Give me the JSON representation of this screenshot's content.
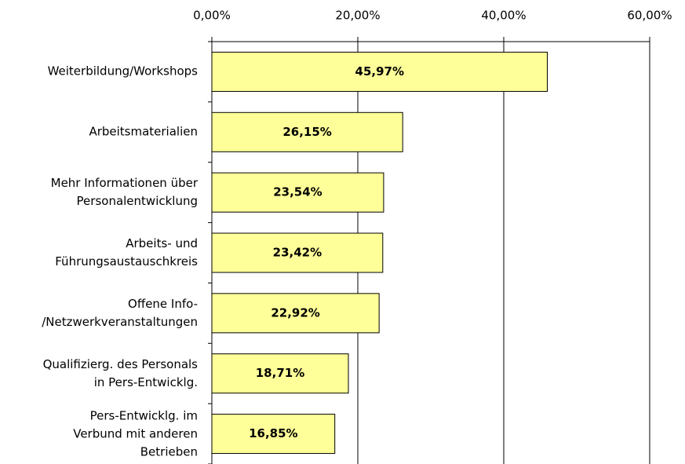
{
  "chart_data": {
    "type": "bar",
    "orientation": "horizontal",
    "categories": [
      "Weiterbildung/Workshops",
      "Arbeitsmaterialien",
      "Mehr Informationen über\nPersonalentwicklung",
      "Arbeits- und\nFührungsaustauschkreis",
      "Offene Info-\n/Netzwerkveranstaltungen",
      "Qualifizierg. des Personals\nin Pers-Entwicklg.",
      "Pers-Entwicklg. im\nVerbund mit anderen\nBetrieben"
    ],
    "values": [
      45.97,
      26.15,
      23.54,
      23.42,
      22.92,
      18.71,
      16.85
    ],
    "value_labels": [
      "45,97%",
      "26,15%",
      "23,54%",
      "23,42%",
      "22,92%",
      "18,71%",
      "16,85%"
    ],
    "color": "#ffff99",
    "xlim": [
      0,
      60
    ],
    "xticks": [
      {
        "value": 0,
        "label": "0,00%"
      },
      {
        "value": 20,
        "label": "20,00%"
      },
      {
        "value": 40,
        "label": "40,00%"
      },
      {
        "value": 60,
        "label": "60,00%"
      }
    ],
    "grid": true
  }
}
